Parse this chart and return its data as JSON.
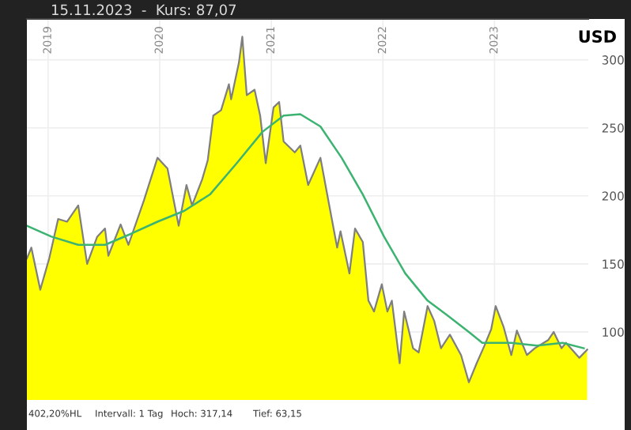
{
  "chart_data": {
    "type": "area",
    "title": "15.11.2023  -  Kurs: 87,07",
    "ylabel": "USD",
    "annotations": [
      "402,20%HL",
      "Intervall: 1 Tag",
      "Hoch: 317,14",
      "Tief: 63,15"
    ],
    "series": [
      {
        "color": "#ffff00",
        "x": [
          2018.81,
          2018.85,
          2018.93,
          2019.01,
          2019.09,
          2019.17,
          2019.27,
          2019.35,
          2019.44,
          2019.51,
          2019.54,
          2019.65,
          2019.72,
          2019.86,
          2019.98,
          2020.07,
          2020.17,
          2020.24,
          2020.29,
          2020.38,
          2020.43,
          2020.48,
          2020.55,
          2020.62,
          2020.64,
          2020.71,
          2020.74,
          2020.78,
          2020.85,
          2020.9,
          2020.95,
          2021.02,
          2021.07,
          2021.11,
          2021.21,
          2021.26,
          2021.33,
          2021.44,
          2021.51,
          2021.59,
          2021.62,
          2021.7,
          2021.75,
          2021.82,
          2021.87,
          2021.92,
          2021.99,
          2022.04,
          2022.08,
          2022.15,
          2022.19,
          2022.27,
          2022.32,
          2022.4,
          2022.46,
          2022.52,
          2022.6,
          2022.7,
          2022.77,
          2022.84,
          2022.91,
          2022.97,
          2023.01,
          2023.08,
          2023.15,
          2023.2,
          2023.29,
          2023.36,
          2023.48,
          2023.53,
          2023.6,
          2023.64,
          2023.76,
          2023.83
        ],
        "values": [
          154,
          162,
          131,
          154,
          183,
          181,
          193,
          150,
          170,
          176,
          156,
          179,
          164,
          197,
          228,
          220,
          178,
          208,
          193,
          212,
          226,
          259,
          263,
          282,
          271,
          298,
          317,
          274,
          278,
          259,
          224,
          265,
          269,
          240,
          232,
          237,
          208,
          228,
          197,
          162,
          174,
          143,
          176,
          166,
          123,
          115,
          135,
          115,
          123,
          77,
          115,
          88,
          85,
          119,
          108,
          88,
          98,
          83,
          63,
          77,
          90,
          102,
          119,
          104,
          83,
          101,
          83,
          88,
          94,
          100,
          88,
          92,
          81,
          87
        ]
      },
      {
        "type": "line",
        "color": "#3cb371",
        "x": [
          2018.81,
          2019.03,
          2019.27,
          2019.51,
          2019.74,
          2019.98,
          2020.22,
          2020.45,
          2020.69,
          2020.92,
          2021.11,
          2021.26,
          2021.44,
          2021.63,
          2021.82,
          2022.01,
          2022.2,
          2022.4,
          2022.58,
          2022.77,
          2022.89,
          2023.15,
          2023.38,
          2023.61,
          2023.8
        ],
        "values": [
          178,
          170,
          164,
          164,
          172,
          181,
          189,
          201,
          224,
          247,
          259,
          260,
          251,
          228,
          201,
          170,
          143,
          123,
          112,
          100,
          92,
          92,
          90,
          92,
          88
        ]
      }
    ],
    "xlim": [
      2018.81,
      2023.84
    ],
    "xticks": [
      2019,
      2020,
      2021,
      2022,
      2023
    ],
    "ylim": [
      50,
      330
    ],
    "yticks": [
      100,
      150,
      200,
      250,
      300
    ],
    "grid": true
  }
}
